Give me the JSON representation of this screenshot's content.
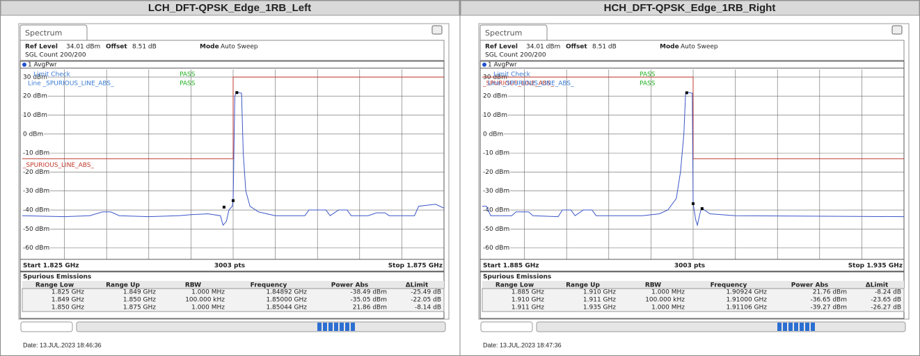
{
  "panels": [
    {
      "title": "LCH_DFT-QPSK_Edge_1RB_Left",
      "tab": "Spectrum",
      "ref_label": "Ref Level",
      "ref_value": "34.01 dBm",
      "offset_label": "Offset",
      "offset_value": "8.51 dB",
      "mode_label": "Mode",
      "mode_value": "Auto Sweep",
      "count": "SGL Count 200/200",
      "trace_label": "1 AvgPwr",
      "limit_check": "Limit Check",
      "limit_check_result": "PASS",
      "line_label": "Line _SPURIOUS_LINE_ABS_",
      "line_result": "PASS",
      "limit_name": "_SPURIOUS_LINE_ABS_",
      "start": "Start 1.825 GHz",
      "points": "3003 pts",
      "stop": "Stop 1.875 GHz",
      "chart": {
        "xlim": [
          1.825,
          1.875
        ],
        "ylim": [
          -66,
          34
        ],
        "yticks": [
          {
            "value": 30,
            "label": "30 dBm"
          },
          {
            "value": 20,
            "label": "20 dBm"
          },
          {
            "value": 10,
            "label": "10 dBm"
          },
          {
            "value": 0,
            "label": "0 dBm"
          },
          {
            "value": -10,
            "label": "-10 dBm"
          },
          {
            "value": -20,
            "label": "-20 dBm"
          },
          {
            "value": -30,
            "label": "-30 dBm"
          },
          {
            "value": -40,
            "label": "-40 dBm"
          },
          {
            "value": -50,
            "label": "-50 dBm"
          },
          {
            "value": -60,
            "label": "-60 dBm"
          }
        ],
        "trace": {
          "color": "#3a55c8",
          "x": [
            1.825,
            1.83,
            1.833,
            1.8345,
            1.8355,
            1.8365,
            1.84,
            1.8435,
            1.845,
            1.847,
            1.8485,
            1.8488,
            1.8492,
            1.8495,
            1.8499,
            1.85,
            1.8502,
            1.8504,
            1.851,
            1.8512,
            1.8515,
            1.852,
            1.853,
            1.855,
            1.8585,
            1.859,
            1.861,
            1.8615,
            1.8625,
            1.8635,
            1.864,
            1.866,
            1.867,
            1.868,
            1.8685,
            1.8715,
            1.872,
            1.874,
            1.875
          ],
          "y": [
            -43,
            -43.5,
            -43,
            -41,
            -41,
            -43,
            -43.5,
            -43,
            -42.5,
            -42,
            -43,
            -48,
            -46,
            -40,
            -38,
            -35,
            20,
            22,
            21.5,
            -10,
            -30,
            -38,
            -41,
            -43,
            -43,
            -40,
            -40,
            -43,
            -40,
            -40,
            -43,
            -43,
            -41.5,
            -41.5,
            -43,
            -43,
            -38,
            -37,
            -39
          ]
        },
        "limit": {
          "color": "#c0392b",
          "x": [
            1.825,
            1.85,
            1.85,
            1.875
          ],
          "y": [
            -13,
            -13,
            30,
            30
          ]
        },
        "markers": {
          "x": [
            1.84892,
            1.85,
            1.85044
          ],
          "y": [
            -38.49,
            -35.05,
            21.86
          ]
        }
      },
      "table": {
        "title": "Spurious Emissions",
        "columns": [
          "Range Low",
          "Range Up",
          "RBW",
          "Frequency",
          "Power Abs",
          "ΔLimit"
        ],
        "rows": [
          [
            "1.825 GHz",
            "1.849 GHz",
            "1.000 MHz",
            "1.84892 GHz",
            "-38.49 dBm",
            "-25.49 dB"
          ],
          [
            "1.849 GHz",
            "1.850 GHz",
            "100.000 kHz",
            "1.85000 GHz",
            "-35.05 dBm",
            "-22.05 dB"
          ],
          [
            "1.850 GHz",
            "1.875 GHz",
            "1.000 MHz",
            "1.85044 GHz",
            "21.86 dBm",
            "-8.14 dB"
          ]
        ]
      },
      "date": "Date: 13.JUL.2023 18:46:36"
    },
    {
      "title": "HCH_DFT-QPSK_Edge_1RB_Right",
      "tab": "Spectrum",
      "ref_label": "Ref Level",
      "ref_value": "34.01 dBm",
      "offset_label": "Offset",
      "offset_value": "8.51 dB",
      "mode_label": "Mode",
      "mode_value": "Auto Sweep",
      "count": "SGL Count 200/200",
      "trace_label": "1 AvgPwr",
      "limit_check": "Limit Check",
      "limit_check_result": "PASS",
      "line_label": "Line _SPURIOUS_LINE_ABS_",
      "line_result": "PASS",
      "limit_name": "_SPURIOUS_LINE_ABS_",
      "start": "Start 1.885 GHz",
      "points": "3003 pts",
      "stop": "Stop 1.935 GHz",
      "chart": {
        "xlim": [
          1.885,
          1.935
        ],
        "ylim": [
          -66,
          34
        ],
        "yticks": [
          {
            "value": 30,
            "label": "30 dBm"
          },
          {
            "value": 20,
            "label": "20 dBm"
          },
          {
            "value": 10,
            "label": "10 dBm"
          },
          {
            "value": 0,
            "label": "0 dBm"
          },
          {
            "value": -10,
            "label": "-10 dBm"
          },
          {
            "value": -20,
            "label": "-20 dBm"
          },
          {
            "value": -30,
            "label": "-30 dBm"
          },
          {
            "value": -40,
            "label": "-40 dBm"
          },
          {
            "value": -50,
            "label": "-50 dBm"
          },
          {
            "value": -60,
            "label": "-60 dBm"
          }
        ],
        "trace": {
          "color": "#3a55c8",
          "x": [
            1.885,
            1.8855,
            1.886,
            1.8885,
            1.889,
            1.8905,
            1.891,
            1.894,
            1.8945,
            1.8955,
            1.896,
            1.897,
            1.898,
            1.8985,
            1.904,
            1.906,
            1.907,
            1.908,
            1.9085,
            1.9089,
            1.9091,
            1.9094,
            1.9099,
            1.91,
            1.9103,
            1.9105,
            1.9108,
            1.911,
            1.912,
            1.915,
            1.935
          ],
          "y": [
            -38,
            -38,
            -43,
            -43,
            -41,
            -41,
            -43,
            -43.5,
            -40,
            -40,
            -43,
            -40,
            -40,
            -43,
            -43,
            -42,
            -40,
            -34,
            -20,
            0,
            21,
            22,
            21.5,
            -36.6,
            -45,
            -48,
            -42,
            -39,
            -42,
            -43,
            -43.5
          ]
        },
        "limit": {
          "color": "#c0392b",
          "x": [
            1.885,
            1.91,
            1.91,
            1.935
          ],
          "y": [
            30,
            30,
            -13,
            -13
          ]
        },
        "markers": {
          "x": [
            1.90924,
            1.91,
            1.91106
          ],
          "y": [
            21.76,
            -36.65,
            -39.27
          ]
        }
      },
      "table": {
        "title": "Spurious Emissions",
        "columns": [
          "Range Low",
          "Range Up",
          "RBW",
          "Frequency",
          "Power Abs",
          "ΔLimit"
        ],
        "rows": [
          [
            "1.885 GHz",
            "1.910 GHz",
            "1.000 MHz",
            "1.90924 GHz",
            "21.76 dBm",
            "-8.24 dB"
          ],
          [
            "1.910 GHz",
            "1.911 GHz",
            "100.000 kHz",
            "1.91000 GHz",
            "-36.65 dBm",
            "-23.65 dB"
          ],
          [
            "1.911 GHz",
            "1.935 GHz",
            "1.000 MHz",
            "1.91106 GHz",
            "-39.27 dBm",
            "-26.27 dB"
          ]
        ]
      },
      "date": "Date: 13.JUL.2023 18:47:36"
    }
  ]
}
